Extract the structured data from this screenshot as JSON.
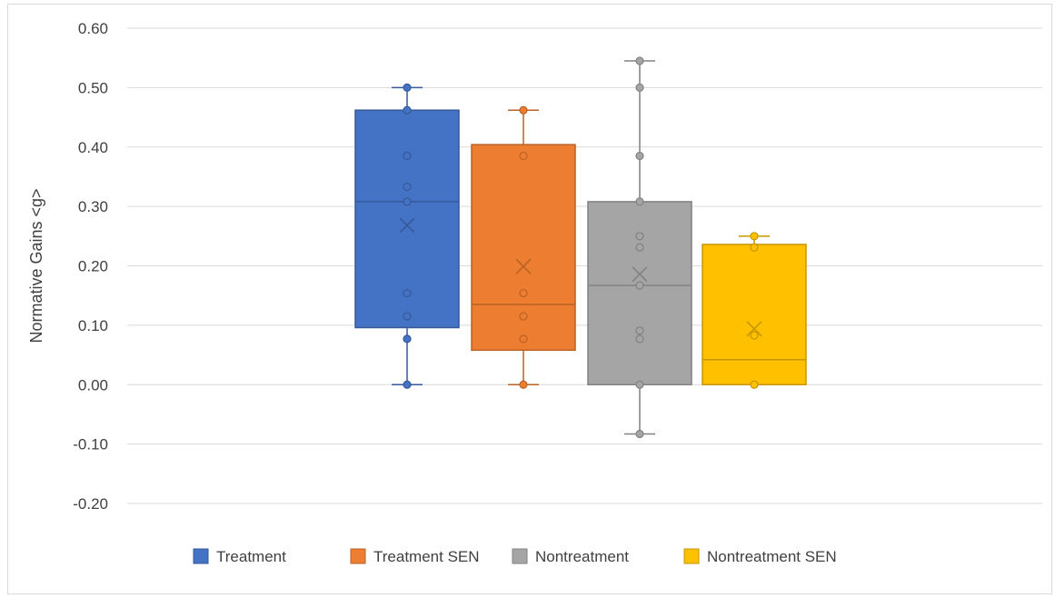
{
  "chart_data": {
    "type": "box",
    "title": "",
    "xlabel": "",
    "ylabel": "Normative Gains <g>",
    "ylim": [
      -0.2,
      0.6
    ],
    "ytick_step": 0.1,
    "yticks": [
      "-0.20",
      "-0.10",
      "0.00",
      "0.10",
      "0.20",
      "0.30",
      "0.40",
      "0.50",
      "0.60"
    ],
    "grid": true,
    "legend_position": "bottom",
    "series": [
      {
        "name": "Treatment",
        "color": "#4472C4",
        "whisker_low": 0.0,
        "q1": 0.096,
        "median": 0.308,
        "q3": 0.462,
        "whisker_high": 0.5,
        "mean": 0.268,
        "points": [
          0.0,
          0.077,
          0.115,
          0.154,
          0.308,
          0.333,
          0.385,
          0.462,
          0.5
        ]
      },
      {
        "name": "Treatment SEN",
        "color": "#ED7D31",
        "whisker_low": 0.0,
        "q1": 0.058,
        "median": 0.135,
        "q3": 0.404,
        "whisker_high": 0.462,
        "mean": 0.199,
        "points": [
          0.0,
          0.077,
          0.115,
          0.154,
          0.385,
          0.462
        ]
      },
      {
        "name": "Nontreatment",
        "color": "#A5A5A5",
        "whisker_low": -0.083,
        "q1": 0.0,
        "median": 0.167,
        "q3": 0.308,
        "whisker_high": 0.545,
        "mean": 0.186,
        "points": [
          -0.083,
          0.0,
          0.077,
          0.091,
          0.167,
          0.231,
          0.25,
          0.308,
          0.385,
          0.5,
          0.545
        ]
      },
      {
        "name": "Nontreatment SEN",
        "color": "#FFC000",
        "whisker_low": 0.0,
        "q1": 0.0,
        "median": 0.042,
        "q3": 0.236,
        "whisker_high": 0.25,
        "mean": 0.094,
        "points": [
          0.0,
          0.083,
          0.231,
          0.25
        ]
      }
    ]
  }
}
